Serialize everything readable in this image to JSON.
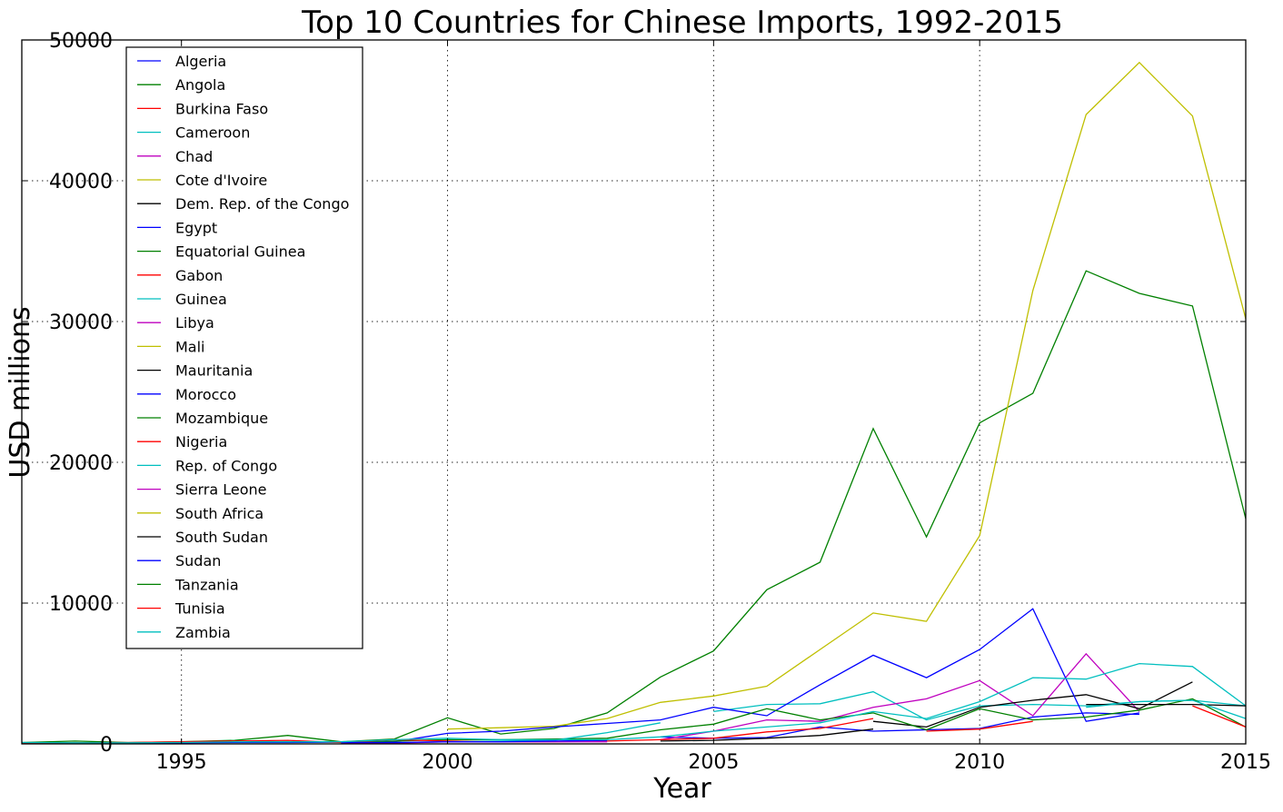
{
  "chart_data": {
    "type": "line",
    "title": "Top 10 Countries for Chinese Imports, 1992-2015",
    "xlabel": "Year",
    "ylabel": "USD millions",
    "xlim": [
      1992,
      2015
    ],
    "ylim": [
      0,
      50000
    ],
    "x_ticks": [
      1995,
      2000,
      2005,
      2010,
      2015
    ],
    "y_ticks": [
      0,
      10000,
      20000,
      30000,
      40000,
      50000
    ],
    "grid": true,
    "legend_position": "upper-left",
    "series": [
      {
        "name": "Algeria",
        "color": "#0000ff",
        "points": [
          [
            2004,
            500
          ],
          [
            2005,
            400
          ],
          [
            2006,
            450
          ],
          [
            2007,
            1200
          ],
          [
            2008,
            900
          ],
          [
            2009,
            1000
          ],
          [
            2010,
            1100
          ],
          [
            2011,
            1900
          ],
          [
            2012,
            2200
          ],
          [
            2013,
            2100
          ]
        ]
      },
      {
        "name": "Angola",
        "color": "#008000",
        "points": [
          [
            1992,
            100
          ],
          [
            1993,
            200
          ],
          [
            1994,
            100
          ],
          [
            1995,
            150
          ],
          [
            1996,
            250
          ],
          [
            1997,
            600
          ],
          [
            1998,
            150
          ],
          [
            1999,
            350
          ],
          [
            2000,
            1850
          ],
          [
            2001,
            700
          ],
          [
            2002,
            1100
          ],
          [
            2003,
            2200
          ],
          [
            2004,
            4750
          ],
          [
            2005,
            6600
          ],
          [
            2006,
            10950
          ],
          [
            2007,
            12900
          ],
          [
            2008,
            22400
          ],
          [
            2009,
            14700
          ],
          [
            2010,
            22800
          ],
          [
            2011,
            24900
          ],
          [
            2012,
            33600
          ],
          [
            2013,
            32000
          ],
          [
            2014,
            31100
          ],
          [
            2015,
            16000
          ]
        ]
      },
      {
        "name": "Burkina Faso",
        "color": "#ff0000",
        "points": [
          [
            2009,
            900
          ],
          [
            2010,
            1050
          ],
          [
            2011,
            1600
          ]
        ]
      },
      {
        "name": "Cameroon",
        "color": "#00bfbf",
        "points": [
          [
            2005,
            2300
          ],
          [
            2006,
            2800
          ],
          [
            2007,
            2850
          ],
          [
            2008,
            3700
          ],
          [
            2009,
            1700
          ],
          [
            2010,
            2700
          ],
          [
            2011,
            2800
          ],
          [
            2012,
            2700
          ],
          [
            2013,
            3000
          ],
          [
            2014,
            3100
          ],
          [
            2015,
            2700
          ]
        ]
      },
      {
        "name": "Chad",
        "color": "#bf00bf",
        "points": [
          [
            2004,
            300
          ],
          [
            2005,
            900
          ],
          [
            2006,
            1700
          ],
          [
            2007,
            1600
          ],
          [
            2008,
            2600
          ],
          [
            2009,
            3200
          ],
          [
            2010,
            4500
          ],
          [
            2011,
            2000
          ],
          [
            2012,
            6400
          ],
          [
            2013,
            2300
          ]
        ]
      },
      {
        "name": "Cote d'Ivoire",
        "color": "#bfbf00",
        "points": [
          [
            2000,
            1050
          ],
          [
            2001,
            1150
          ],
          [
            2002,
            1250
          ],
          [
            2003,
            1800
          ],
          [
            2004,
            2950
          ],
          [
            2005,
            3400
          ],
          [
            2006,
            4100
          ],
          [
            2007,
            6700
          ],
          [
            2008,
            9300
          ],
          [
            2009,
            8700
          ],
          [
            2010,
            14800
          ],
          [
            2011,
            32200
          ],
          [
            2012,
            44700
          ],
          [
            2013,
            48400
          ],
          [
            2014,
            44600
          ],
          [
            2015,
            30200
          ]
        ]
      },
      {
        "name": "Dem. Rep. of the Congo",
        "color": "#000000",
        "points": [
          [
            2008,
            1600
          ],
          [
            2009,
            1200
          ],
          [
            2010,
            2600
          ],
          [
            2011,
            3100
          ],
          [
            2012,
            3500
          ],
          [
            2013,
            2500
          ],
          [
            2014,
            4400
          ]
        ]
      },
      {
        "name": "Egypt",
        "color": "#0000ff",
        "points": [
          [
            1992,
            80
          ],
          [
            1993,
            50
          ],
          [
            1994,
            50
          ],
          [
            1995,
            80
          ],
          [
            1996,
            100
          ],
          [
            1997,
            100
          ],
          [
            1998,
            120
          ],
          [
            1999,
            150
          ],
          [
            2000,
            750
          ],
          [
            2001,
            900
          ],
          [
            2002,
            1200
          ],
          [
            2003,
            1450
          ],
          [
            2004,
            1700
          ],
          [
            2005,
            2600
          ],
          [
            2006,
            2000
          ],
          [
            2007,
            4200
          ],
          [
            2008,
            6300
          ],
          [
            2009,
            4700
          ],
          [
            2010,
            6700
          ],
          [
            2011,
            9600
          ],
          [
            2012,
            1600
          ],
          [
            2013,
            2200
          ]
        ]
      },
      {
        "name": "Equatorial Guinea",
        "color": "#008000",
        "points": [
          [
            1998,
            100
          ],
          [
            1999,
            200
          ],
          [
            2000,
            300
          ],
          [
            2001,
            300
          ],
          [
            2002,
            350
          ],
          [
            2003,
            400
          ],
          [
            2004,
            1000
          ],
          [
            2005,
            1400
          ],
          [
            2006,
            2500
          ],
          [
            2007,
            1700
          ],
          [
            2008,
            2200
          ],
          [
            2009,
            1000
          ],
          [
            2010,
            2500
          ],
          [
            2011,
            1700
          ],
          [
            2012,
            1900
          ],
          [
            2013,
            2400
          ],
          [
            2014,
            3200
          ],
          [
            2015,
            1200
          ]
        ]
      },
      {
        "name": "Gabon",
        "color": "#ff0000",
        "points": [
          [
            1992,
            50
          ],
          [
            1993,
            80
          ],
          [
            1994,
            100
          ],
          [
            1995,
            150
          ],
          [
            1996,
            200
          ],
          [
            1997,
            250
          ],
          [
            1998,
            100
          ],
          [
            1999,
            300
          ],
          [
            2000,
            200
          ],
          [
            2001,
            150
          ],
          [
            2002,
            150
          ],
          [
            2003,
            200
          ],
          [
            2004,
            300
          ],
          [
            2005,
            400
          ],
          [
            2006,
            850
          ],
          [
            2007,
            1100
          ],
          [
            2008,
            1800
          ]
        ]
      },
      {
        "name": "Guinea",
        "color": "#00bfbf",
        "points": [
          [
            1998,
            100
          ],
          [
            1999,
            100
          ],
          [
            2000,
            150
          ],
          [
            2001,
            200
          ],
          [
            2002,
            250
          ],
          [
            2003,
            800
          ],
          [
            2004,
            1500
          ]
        ]
      },
      {
        "name": "Libya",
        "color": "#bf00bf",
        "points": [
          [
            1998,
            50
          ],
          [
            1999,
            50
          ],
          [
            2000,
            150
          ],
          [
            2001,
            150
          ],
          [
            2002,
            150
          ],
          [
            2003,
            150
          ]
        ]
      },
      {
        "name": "Mali",
        "color": "#bfbf00",
        "points": []
      },
      {
        "name": "Mauritania",
        "color": "#000000",
        "points": [
          [
            2004,
            200
          ],
          [
            2005,
            250
          ],
          [
            2006,
            400
          ],
          [
            2007,
            600
          ],
          [
            2008,
            1050
          ]
        ]
      },
      {
        "name": "Morocco",
        "color": "#0000ff",
        "points": [
          [
            1998,
            100
          ],
          [
            1999,
            100
          ],
          [
            2000,
            150
          ],
          [
            2001,
            150
          ],
          [
            2002,
            200
          ],
          [
            2003,
            250
          ]
        ]
      },
      {
        "name": "Mozambique",
        "color": "#008000",
        "points": []
      },
      {
        "name": "Nigeria",
        "color": "#ff0000",
        "points": [
          [
            2014,
            2700
          ],
          [
            2015,
            1200
          ]
        ]
      },
      {
        "name": "Rep. of Congo",
        "color": "#00bfbf",
        "points": [
          [
            1992,
            100
          ],
          [
            1993,
            80
          ],
          [
            1994,
            80
          ],
          [
            1995,
            100
          ],
          [
            1996,
            150
          ],
          [
            1997,
            150
          ],
          [
            1998,
            150
          ],
          [
            1999,
            300
          ],
          [
            2000,
            400
          ],
          [
            2001,
            300
          ],
          [
            2002,
            300
          ],
          [
            2003,
            300
          ],
          [
            2004,
            500
          ],
          [
            2005,
            900
          ],
          [
            2006,
            1200
          ],
          [
            2007,
            1500
          ],
          [
            2008,
            2300
          ],
          [
            2009,
            1800
          ],
          [
            2010,
            3000
          ],
          [
            2011,
            4700
          ],
          [
            2012,
            4600
          ],
          [
            2013,
            5700
          ],
          [
            2014,
            5500
          ],
          [
            2015,
            2700
          ]
        ]
      },
      {
        "name": "Sierra Leone",
        "color": "#bf00bf",
        "points": []
      },
      {
        "name": "South Africa",
        "color": "#bfbf00",
        "points": []
      },
      {
        "name": "South Sudan",
        "color": "#000000",
        "points": [
          [
            2012,
            2800
          ],
          [
            2013,
            2800
          ],
          [
            2014,
            2800
          ],
          [
            2015,
            2700
          ]
        ]
      },
      {
        "name": "Sudan",
        "color": "#0000ff",
        "points": []
      },
      {
        "name": "Tanzania",
        "color": "#008000",
        "points": []
      },
      {
        "name": "Tunisia",
        "color": "#ff0000",
        "points": []
      },
      {
        "name": "Zambia",
        "color": "#00bfbf",
        "points": [
          [
            2012,
            2600
          ],
          [
            2013,
            3000
          ],
          [
            2014,
            3100
          ],
          [
            2015,
            1800
          ]
        ]
      }
    ]
  }
}
